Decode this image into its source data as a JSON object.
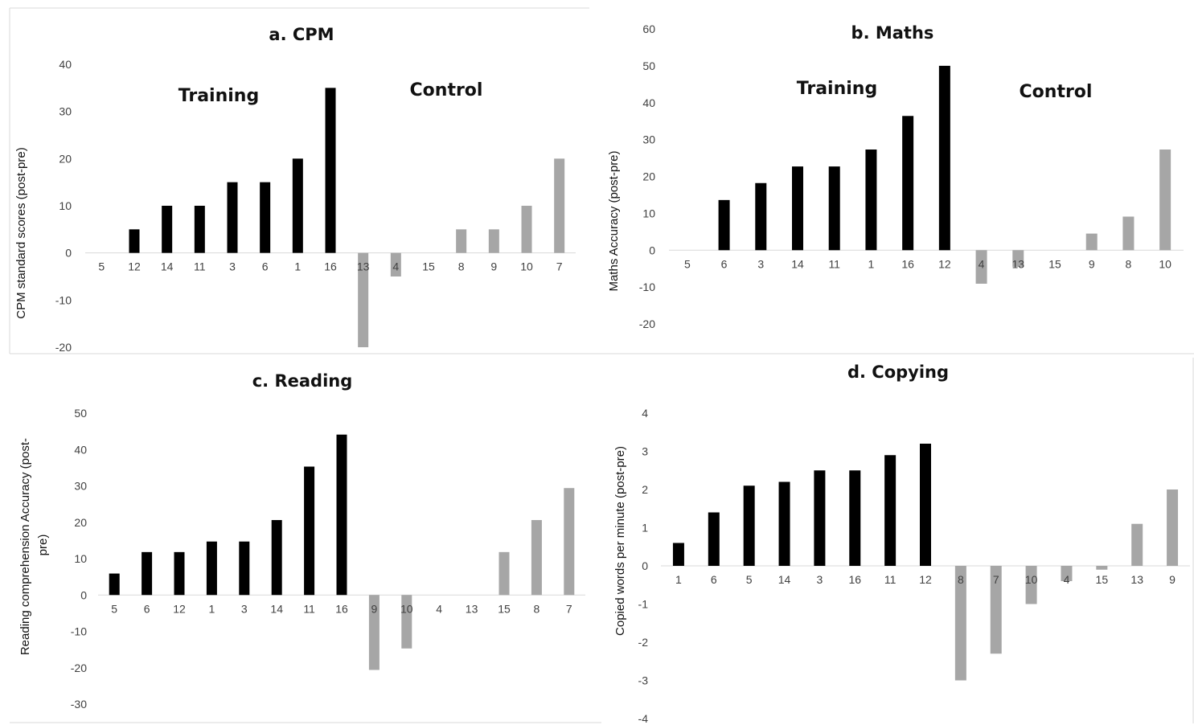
{
  "chart_data": [
    {
      "type": "bar",
      "title": "a. CPM",
      "ylabel": [
        "CPM standard scores (post-pre)"
      ],
      "xlabel": "",
      "ylim": [
        -20,
        40
      ],
      "yticks": [
        40,
        30,
        20,
        10,
        0,
        -10,
        -20
      ],
      "group_labels": [
        "Training",
        "Control"
      ],
      "categories": [
        "5",
        "12",
        "14",
        "11",
        "3",
        "6",
        "1",
        "16",
        "13",
        "4",
        "15",
        "8",
        "9",
        "10",
        "7"
      ],
      "values": [
        0,
        5,
        10,
        10,
        15,
        15,
        20,
        35,
        -20,
        -5,
        0,
        5,
        5,
        10,
        20
      ],
      "groups": [
        "training",
        "training",
        "training",
        "training",
        "training",
        "training",
        "training",
        "training",
        "control",
        "control",
        "control",
        "control",
        "control",
        "control",
        "control"
      ],
      "colors": {
        "training": "#000000",
        "control": "#a6a6a6"
      },
      "grid": false
    },
    {
      "type": "bar",
      "title": "b. Maths",
      "ylabel": [
        "Maths Accuracy (post-pre)"
      ],
      "xlabel": "",
      "ylim": [
        -20,
        60
      ],
      "yticks": [
        60,
        50,
        40,
        30,
        20,
        10,
        0,
        -10,
        -20
      ],
      "group_labels": [
        "Training",
        "Control"
      ],
      "categories": [
        "5",
        "6",
        "3",
        "14",
        "11",
        "1",
        "16",
        "12",
        "4",
        "13",
        "15",
        "9",
        "8",
        "10"
      ],
      "values": [
        0,
        13.6,
        18.2,
        22.7,
        22.7,
        27.3,
        36.4,
        50,
        -9.1,
        -4.5,
        0,
        4.5,
        9.1,
        27.3
      ],
      "groups": [
        "training",
        "training",
        "training",
        "training",
        "training",
        "training",
        "training",
        "training",
        "control",
        "control",
        "control",
        "control",
        "control",
        "control"
      ],
      "colors": {
        "training": "#000000",
        "control": "#a6a6a6"
      },
      "grid": false
    },
    {
      "type": "bar",
      "title": "c. Reading",
      "ylabel": [
        "Reading  comprehension Accuracy (post-",
        "pre)"
      ],
      "xlabel": "",
      "ylim": [
        -30,
        50
      ],
      "yticks": [
        50,
        40,
        30,
        20,
        10,
        0,
        -10,
        -20,
        -30
      ],
      "group_labels": [],
      "categories": [
        "5",
        "6",
        "12",
        "1",
        "3",
        "14",
        "11",
        "16",
        "9",
        "10",
        "4",
        "13",
        "15",
        "8",
        "7"
      ],
      "values": [
        5.9,
        11.8,
        11.8,
        14.7,
        14.7,
        20.6,
        35.3,
        44.1,
        -20.6,
        -14.7,
        0,
        0,
        11.8,
        20.6,
        29.4
      ],
      "groups": [
        "training",
        "training",
        "training",
        "training",
        "training",
        "training",
        "training",
        "training",
        "control",
        "control",
        "control",
        "control",
        "control",
        "control",
        "control"
      ],
      "colors": {
        "training": "#000000",
        "control": "#a6a6a6"
      },
      "grid": false
    },
    {
      "type": "bar",
      "title": "d. Copying",
      "ylabel": [
        "Copied words per minute (post-pre)"
      ],
      "xlabel": "",
      "ylim": [
        -4,
        4
      ],
      "yticks": [
        4,
        3,
        2,
        1,
        0,
        -1,
        -2,
        -3,
        -4
      ],
      "group_labels": [],
      "categories": [
        "1",
        "6",
        "5",
        "14",
        "3",
        "16",
        "11",
        "12",
        "8",
        "7",
        "10",
        "4",
        "15",
        "13",
        "9"
      ],
      "values": [
        0.6,
        1.4,
        2.1,
        2.2,
        2.5,
        2.5,
        2.9,
        3.2,
        -3.0,
        -2.3,
        -1.0,
        -0.4,
        -0.1,
        1.1,
        2.0
      ],
      "groups": [
        "training",
        "training",
        "training",
        "training",
        "training",
        "training",
        "training",
        "training",
        "control",
        "control",
        "control",
        "control",
        "control",
        "control",
        "control"
      ],
      "colors": {
        "training": "#000000",
        "control": "#a6a6a6"
      },
      "grid": false
    }
  ]
}
